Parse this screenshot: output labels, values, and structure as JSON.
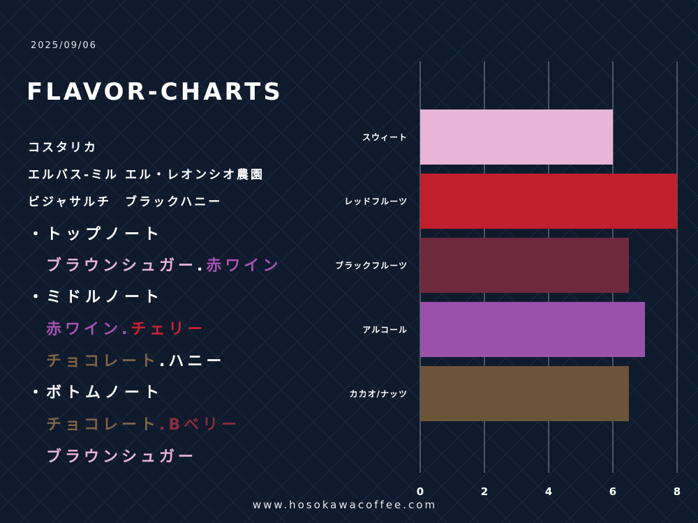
{
  "header": {
    "date": "2025/09/06",
    "title": "FLAVOR-CHARTS"
  },
  "origin": {
    "country": "コスタリカ",
    "farm": "エルバス-ミル エル・レオンシオ農園",
    "variety_process": "ビジャサルチ　ブラックハニー"
  },
  "notes": {
    "bullet": "・",
    "top": {
      "label": "トップノート",
      "items": [
        {
          "text": "ブラウンシュガー",
          "color": "#e8b4d8"
        },
        {
          "text": ".",
          "color": "#ffffff"
        },
        {
          "text": "赤ワイン",
          "color": "#a653b2"
        }
      ]
    },
    "middle": {
      "label": "ミドルノート",
      "line1": [
        {
          "text": "赤ワイン",
          "color": "#a653b2"
        },
        {
          "text": ".",
          "color": "#a653b2"
        },
        {
          "text": "チェリー",
          "color": "#cf2330"
        }
      ],
      "line2": [
        {
          "text": "チョコレート",
          "color": "#806447"
        },
        {
          "text": ".",
          "color": "#ffffff"
        },
        {
          "text": "ハニー",
          "color": "#ffffff"
        }
      ]
    },
    "bottom": {
      "label": "ボトムノート",
      "line1": [
        {
          "text": "チョコレート",
          "color": "#806447"
        },
        {
          "text": ".B",
          "color": "#8c2e40"
        },
        {
          "text": "ベリー",
          "color": "#8c2e40"
        }
      ],
      "line2": [
        {
          "text": "ブラウンシュガー",
          "color": "#e8b4d8"
        }
      ]
    }
  },
  "chart_data": {
    "type": "bar",
    "orientation": "horizontal",
    "categories": [
      "スウィート",
      "レッドフルーツ",
      "ブラックフルーツ",
      "アルコール",
      "カカオ/ナッツ"
    ],
    "values": [
      6,
      8,
      6.5,
      7,
      6.5
    ],
    "colors": [
      "#e8b4d8",
      "#c0202c",
      "#6e2a3c",
      "#9a52a8",
      "#6b5538"
    ],
    "xlim": [
      0,
      8
    ],
    "xticks": [
      0,
      2,
      4,
      6,
      8
    ],
    "grid": true,
    "title": "",
    "xlabel": "",
    "ylabel": ""
  },
  "footer": {
    "url": "www.hosokawacoffee.com"
  }
}
